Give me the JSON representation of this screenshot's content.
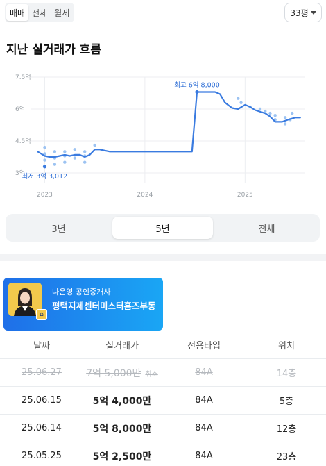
{
  "deal_tabs": [
    "매매",
    "전세",
    "월세"
  ],
  "area_select": {
    "value": "33평"
  },
  "section_title": "지난 실거래가 흐름",
  "chart_data": {
    "type": "line",
    "title": "",
    "xlabel": "",
    "ylabel": "",
    "y_ticks": [
      "7.5억",
      "6억",
      "4.5억",
      "3억"
    ],
    "y_tick_values": [
      7.5,
      6,
      4.5,
      3
    ],
    "x_ticks": [
      "2023",
      "2024",
      "2025"
    ],
    "x_tick_values": [
      2023.0,
      2024.0,
      2025.0
    ],
    "xlim": [
      2022.9,
      2025.6
    ],
    "ylim": [
      3.0,
      7.5
    ],
    "grid": true,
    "series": [
      {
        "color": "#3a7be0",
        "x": [
          2022.93,
          2023.0,
          2023.05,
          2023.1,
          2023.15,
          2023.2,
          2023.25,
          2023.3,
          2023.35,
          2023.4,
          2023.45,
          2023.5,
          2023.55,
          2023.6,
          2023.65,
          2023.7,
          2023.8,
          2024.0,
          2024.2,
          2024.4,
          2024.47,
          2024.52,
          2024.6,
          2024.7,
          2024.75,
          2024.8,
          2024.87,
          2024.93,
          2025.0,
          2025.05,
          2025.1,
          2025.2,
          2025.25,
          2025.3,
          2025.37,
          2025.43,
          2025.5,
          2025.55
        ],
        "y": [
          4.0,
          3.8,
          3.75,
          3.75,
          3.8,
          3.85,
          3.8,
          3.85,
          3.85,
          3.75,
          3.85,
          4.1,
          4.1,
          4.05,
          4.0,
          4.0,
          4.0,
          4.0,
          4.0,
          4.0,
          4.0,
          6.8,
          6.8,
          6.8,
          6.7,
          6.3,
          6.05,
          6.0,
          6.2,
          6.1,
          5.95,
          5.8,
          5.65,
          5.4,
          5.4,
          5.5,
          5.6,
          5.6
        ]
      }
    ],
    "scatter_points": {
      "color": "#9cc3f2",
      "x": [
        2023.0,
        2023.0,
        2023.0,
        2023.0,
        2023.1,
        2023.1,
        2023.1,
        2023.2,
        2023.2,
        2023.2,
        2023.3,
        2023.3,
        2023.4,
        2023.4,
        2023.4,
        2023.5,
        2024.93,
        2024.96,
        2025.05,
        2025.15,
        2025.2,
        2025.25,
        2025.3,
        2025.3,
        2025.4,
        2025.4,
        2025.45,
        2025.47
      ],
      "y": [
        4.2,
        3.9,
        3.6,
        3.3,
        4.0,
        3.7,
        3.4,
        4.0,
        3.8,
        3.5,
        4.1,
        3.7,
        4.0,
        3.8,
        3.5,
        4.3,
        6.5,
        6.3,
        6.1,
        6.0,
        5.9,
        5.8,
        5.7,
        5.5,
        5.6,
        5.3,
        5.5,
        5.8
      ]
    },
    "annotations": [
      {
        "text": "최고 6억 8,000",
        "x": 2024.52,
        "y": 6.8,
        "position": "above"
      },
      {
        "text": "최저 3억 3,012",
        "x": 2023.0,
        "y": 3.3,
        "position": "below"
      }
    ]
  },
  "period_options": [
    {
      "label": "3년",
      "active": false
    },
    {
      "label": "5년",
      "active": true
    },
    {
      "label": "전체",
      "active": false
    }
  ],
  "agent": {
    "office": "나은영 공인중개사",
    "name": "평택지제센터미스터홈즈부동"
  },
  "table": {
    "headers": [
      "날짜",
      "실거래가",
      "전용타입",
      "위치"
    ],
    "rows": [
      {
        "date": "25.06.27",
        "price": "7억 5,000만",
        "tag": "취소",
        "type": "84A",
        "floor": "14층",
        "cancelled": true
      },
      {
        "date": "25.06.15",
        "price": "5억 4,000만",
        "tag": "",
        "type": "84A",
        "floor": "5층",
        "cancelled": false
      },
      {
        "date": "25.06.14",
        "price": "5억 8,000만",
        "tag": "",
        "type": "84A",
        "floor": "12층",
        "cancelled": false
      },
      {
        "date": "25.05.25",
        "price": "5억 2,500만",
        "tag": "",
        "type": "84A",
        "floor": "23층",
        "cancelled": false
      }
    ]
  }
}
